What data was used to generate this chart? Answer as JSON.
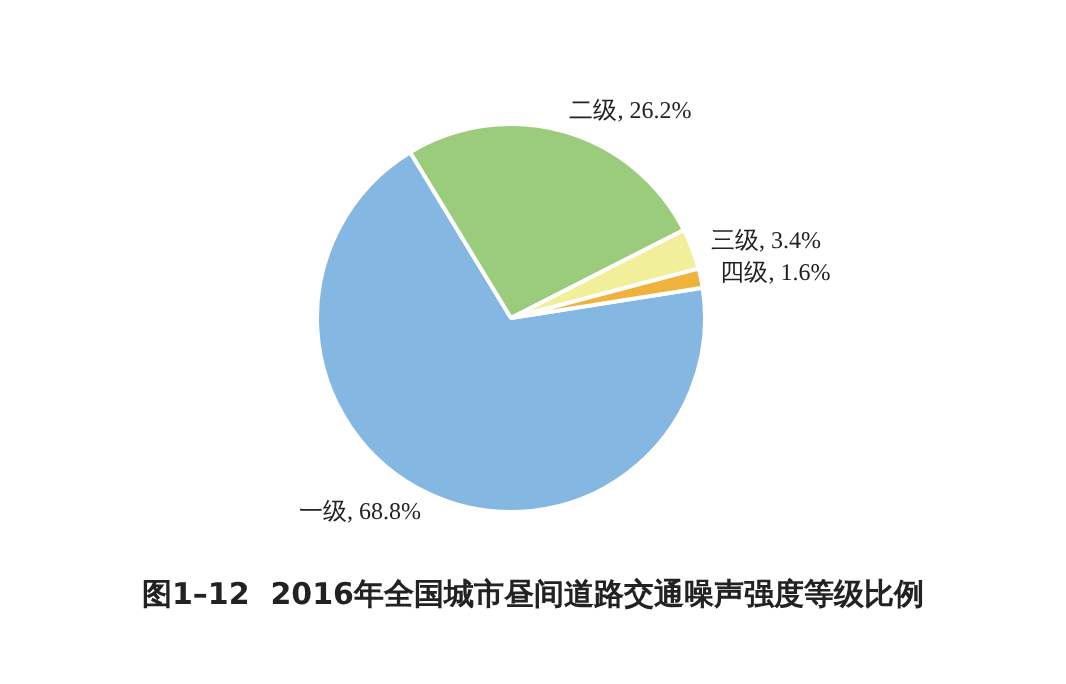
{
  "chart_data": {
    "type": "pie",
    "title": "图1–12  2016年全国城市昼间道路交通噪声强度等级比例",
    "categories": [
      "一级",
      "二级",
      "三级",
      "四级"
    ],
    "values": [
      68.8,
      26.2,
      3.4,
      1.6
    ],
    "value_labels": [
      ", 68.8%",
      ", 26.2%",
      ", 3.4%",
      ", 1.6%"
    ],
    "colors": [
      "#85b7e3",
      "#9bcc7b",
      "#f2ef9b",
      "#efb23c"
    ],
    "legend": false
  }
}
